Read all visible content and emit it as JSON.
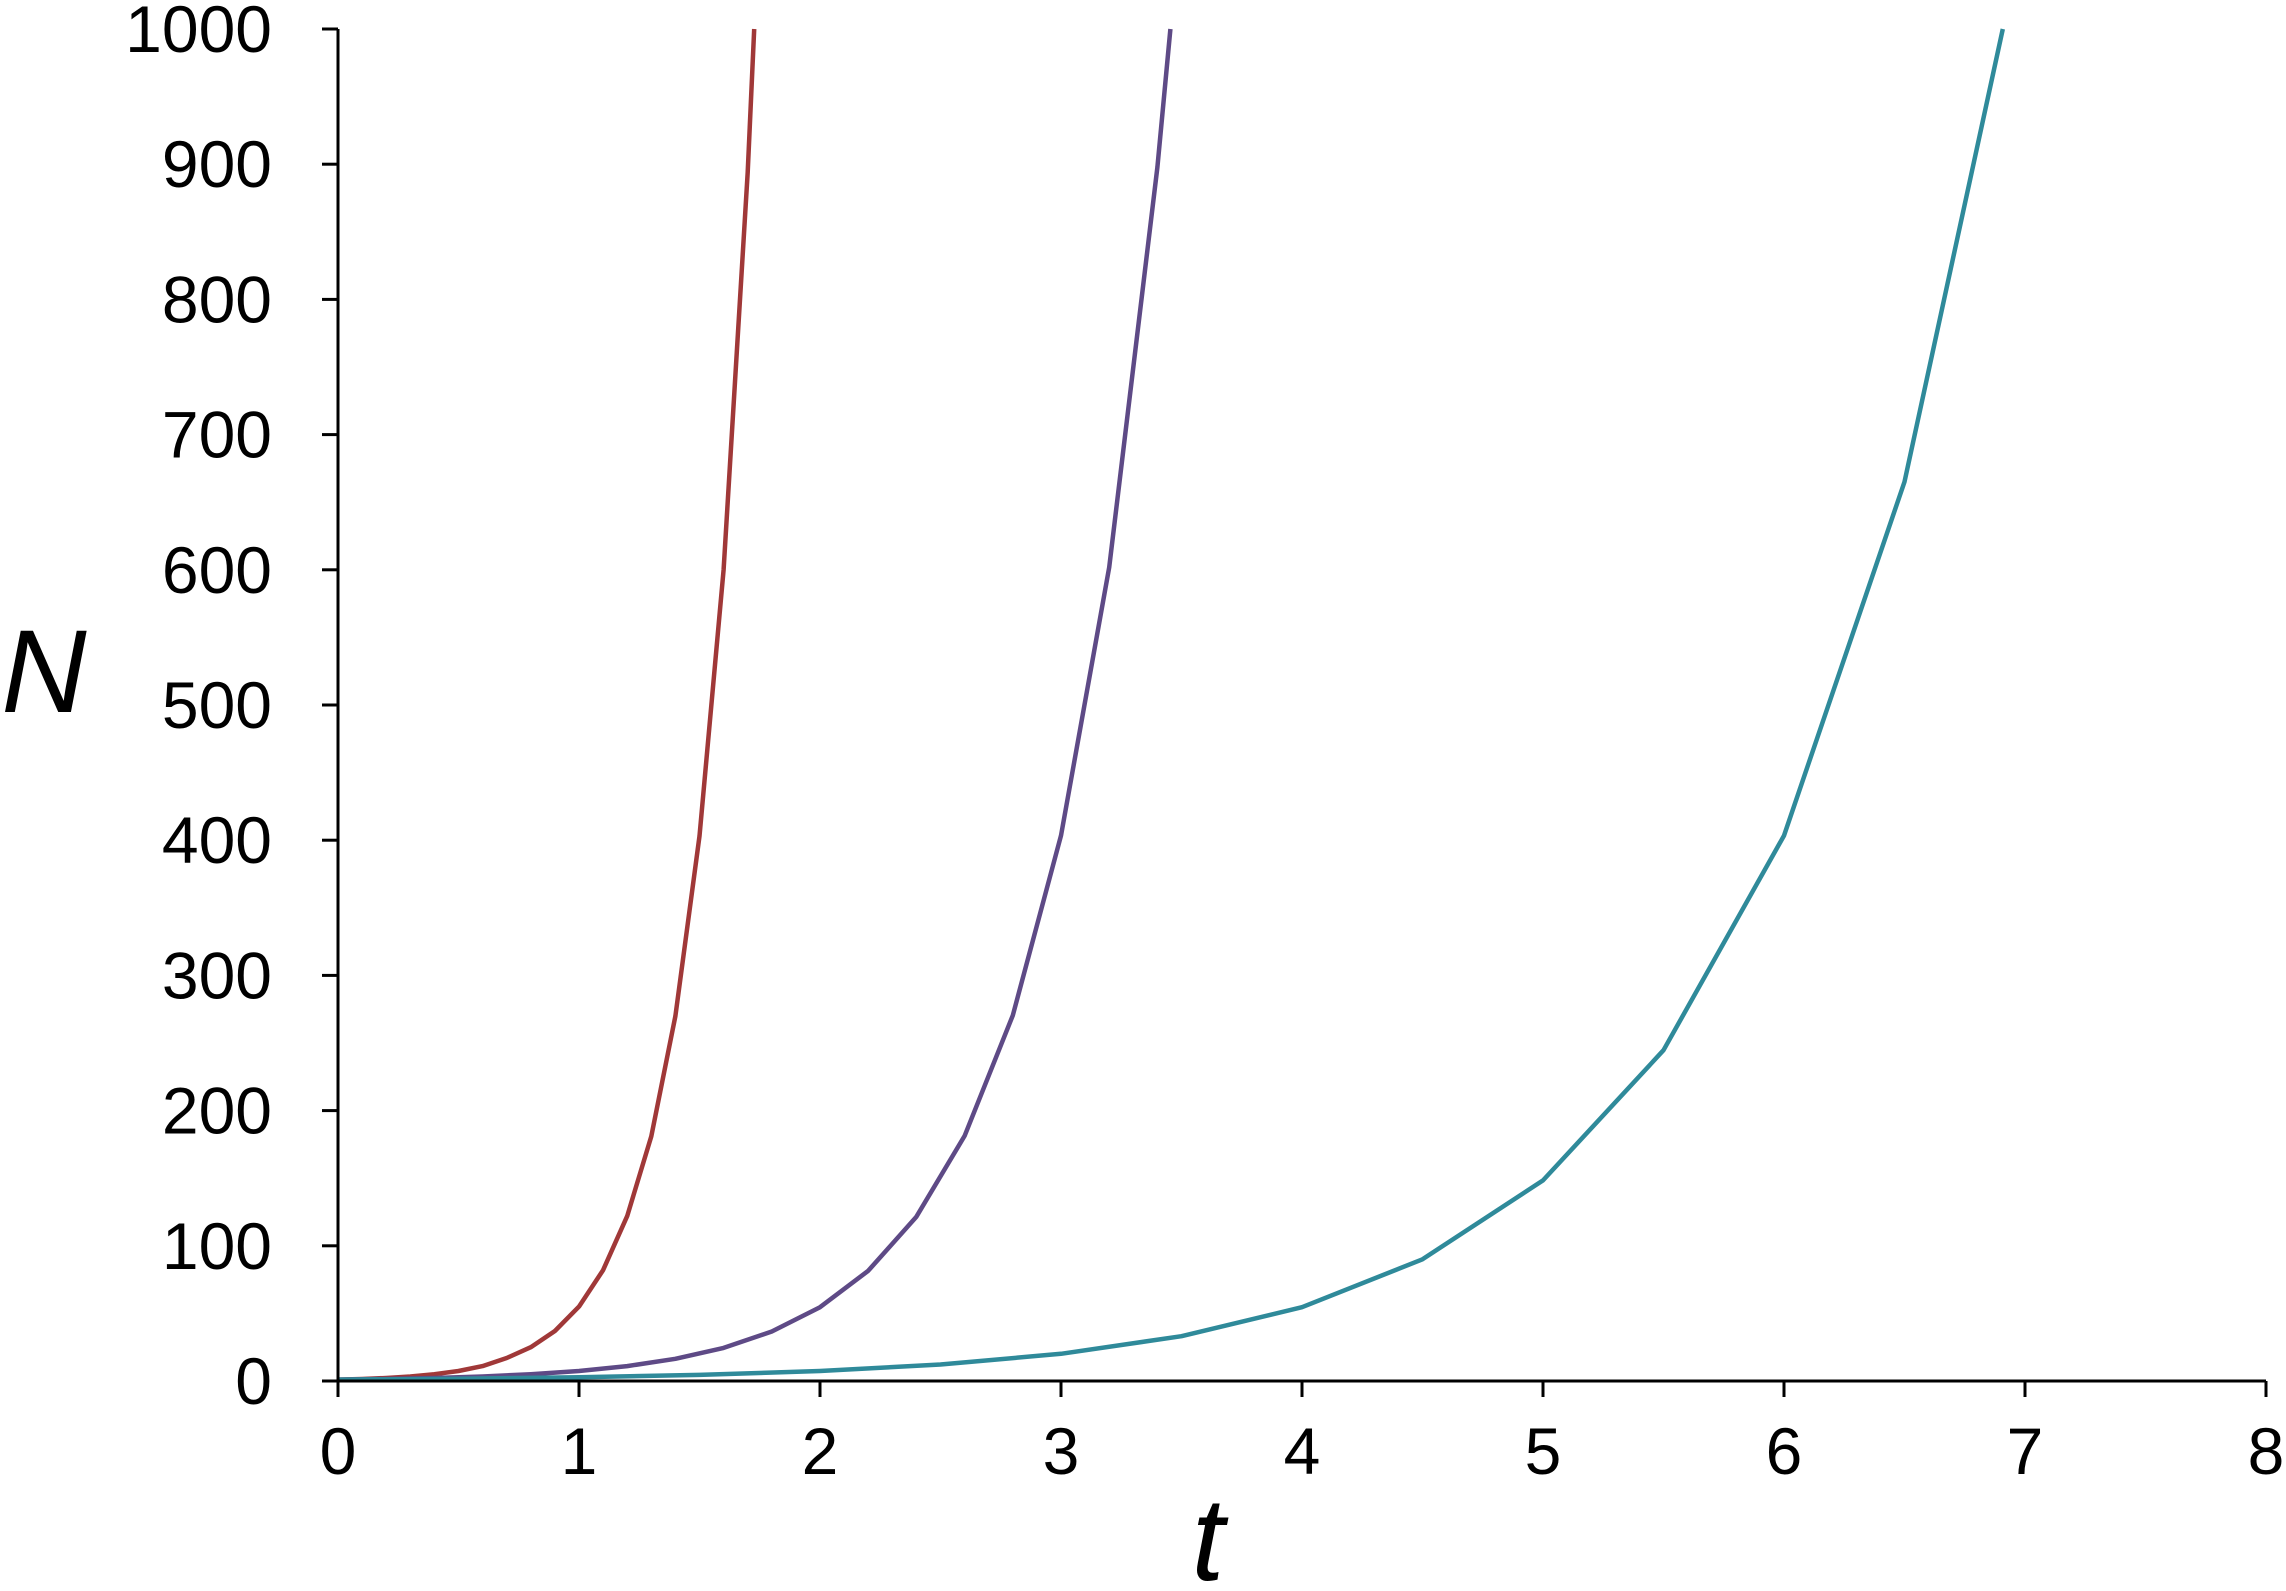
{
  "chart_data": {
    "type": "line",
    "title": "",
    "xlabel": "t",
    "ylabel": "N",
    "xlim": [
      0,
      8
    ],
    "ylim": [
      0,
      1000
    ],
    "x_ticks": [
      0,
      1,
      2,
      3,
      4,
      5,
      6,
      7,
      8
    ],
    "y_ticks": [
      0,
      100,
      200,
      300,
      400,
      500,
      600,
      700,
      800,
      900,
      1000
    ],
    "grid": false,
    "legend": "none",
    "series": [
      {
        "color": "#a03838",
        "x": [
          0,
          0.1,
          0.2,
          0.3,
          0.4,
          0.5,
          0.6,
          0.7,
          0.8,
          0.9,
          1.0,
          1.1,
          1.2,
          1.3,
          1.4,
          1.5,
          1.6,
          1.7,
          1.727
        ],
        "y": [
          1,
          1.5,
          2.2,
          3.3,
          5,
          7.4,
          11,
          17,
          25,
          37,
          55,
          82,
          122,
          181,
          270,
          403,
          600,
          894,
          1000
        ]
      },
      {
        "color": "#5e4a86",
        "x": [
          0,
          0.2,
          0.4,
          0.6,
          0.8,
          1.0,
          1.2,
          1.4,
          1.6,
          1.8,
          2.0,
          2.2,
          2.4,
          2.6,
          2.8,
          3.0,
          3.2,
          3.4,
          3.454
        ],
        "y": [
          1,
          1.5,
          2.2,
          3.3,
          5,
          7.4,
          11,
          16.4,
          24.5,
          36.6,
          54.6,
          81.5,
          121.5,
          181.3,
          270.4,
          403.4,
          601.8,
          897.8,
          1000
        ]
      },
      {
        "color": "#2f8a9a",
        "x": [
          0,
          0.5,
          1.0,
          1.5,
          2.0,
          2.5,
          3.0,
          3.5,
          4.0,
          4.5,
          5.0,
          5.5,
          6.0,
          6.5,
          6.908
        ],
        "y": [
          1,
          1.65,
          2.72,
          4.48,
          7.39,
          12.2,
          20.1,
          33.1,
          54.6,
          90,
          148.4,
          244.7,
          403.4,
          665.1,
          1000
        ]
      }
    ]
  }
}
